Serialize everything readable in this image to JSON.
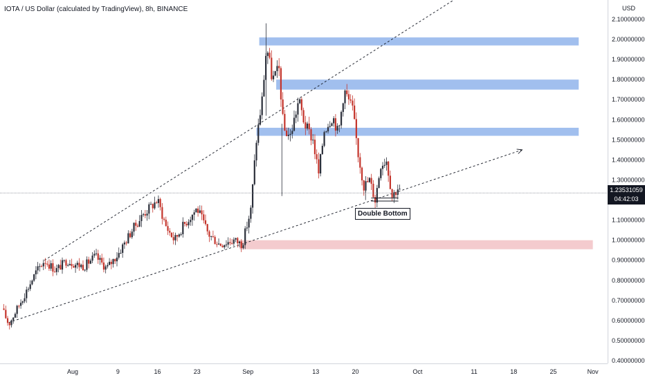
{
  "header": {
    "title": "IOTA / US Dollar (calculated by TradingView), 8h, BINANCE",
    "currency": "USD"
  },
  "price_tag": {
    "value": "1.23531059",
    "countdown": "04:42:03"
  },
  "annotation": {
    "label": "Double Bottom"
  },
  "colors": {
    "up": "#2b2f3a",
    "down": "#c4342b",
    "zone_blue": "#90b4eb",
    "zone_red": "#f0b9be",
    "trendline": "#131722",
    "price_line": "#787b86",
    "axis_text": "#131722"
  },
  "chart_data": {
    "type": "candlestick",
    "title": "IOTA / US Dollar (calculated by TradingView), 8h, BINANCE",
    "y_unit": "USD",
    "ylim": [
      0.4,
      2.1
    ],
    "y_ticks": [
      "2.10000000",
      "2.00000000",
      "1.90000000",
      "1.80000000",
      "1.70000000",
      "1.60000000",
      "1.50000000",
      "1.40000000",
      "1.30000000",
      "1.10000000",
      "1.00000000",
      "0.90000000",
      "0.80000000",
      "0.70000000",
      "0.60000000",
      "0.50000000",
      "0.40000000"
    ],
    "x_ticks": [
      {
        "label": "Aug",
        "day": 1
      },
      {
        "label": "9",
        "day": 9
      },
      {
        "label": "16",
        "day": 16
      },
      {
        "label": "23",
        "day": 23
      },
      {
        "label": "Sep",
        "day": 32
      },
      {
        "label": "13",
        "day": 44
      },
      {
        "label": "20",
        "day": 51
      },
      {
        "label": "Oct",
        "day": 62
      },
      {
        "label": "11",
        "day": 72
      },
      {
        "label": "18",
        "day": 79
      },
      {
        "label": "25",
        "day": 86
      },
      {
        "label": "Nov",
        "day": 93
      }
    ],
    "price_line": 1.2353,
    "anchors": [
      {
        "day": -11.5,
        "price": 0.66
      },
      {
        "day": -10.3,
        "price": 0.58
      },
      {
        "day": -7.5,
        "price": 0.73
      },
      {
        "day": -5.5,
        "price": 0.84
      },
      {
        "day": -4.0,
        "price": 0.9
      },
      {
        "day": -2.0,
        "price": 0.85
      },
      {
        "day": 0.0,
        "price": 0.9
      },
      {
        "day": 1.5,
        "price": 0.88
      },
      {
        "day": 3.0,
        "price": 0.87
      },
      {
        "day": 5.0,
        "price": 0.92
      },
      {
        "day": 7.0,
        "price": 0.86
      },
      {
        "day": 9.0,
        "price": 0.93
      },
      {
        "day": 11.5,
        "price": 1.05
      },
      {
        "day": 13.5,
        "price": 1.13
      },
      {
        "day": 16.0,
        "price": 1.2
      },
      {
        "day": 17.5,
        "price": 1.07
      },
      {
        "day": 19.0,
        "price": 1.0
      },
      {
        "day": 20.5,
        "price": 1.07
      },
      {
        "day": 23.0,
        "price": 1.16
      },
      {
        "day": 25.0,
        "price": 1.03
      },
      {
        "day": 27.0,
        "price": 0.98
      },
      {
        "day": 29.5,
        "price": 1.0
      },
      {
        "day": 31.0,
        "price": 0.98
      },
      {
        "day": 32.5,
        "price": 1.15
      },
      {
        "day": 33.5,
        "price": 1.5
      },
      {
        "day": 34.5,
        "price": 1.7
      },
      {
        "day": 35.3,
        "price": 1.97
      },
      {
        "day": 36.3,
        "price": 1.8
      },
      {
        "day": 37.5,
        "price": 1.85
      },
      {
        "day": 38.3,
        "price": 1.55
      },
      {
        "day": 39.5,
        "price": 1.52
      },
      {
        "day": 41.0,
        "price": 1.7
      },
      {
        "day": 42.0,
        "price": 1.58
      },
      {
        "day": 43.5,
        "price": 1.5
      },
      {
        "day": 44.5,
        "price": 1.33
      },
      {
        "day": 45.5,
        "price": 1.55
      },
      {
        "day": 47.0,
        "price": 1.62
      },
      {
        "day": 48.0,
        "price": 1.53
      },
      {
        "day": 49.0,
        "price": 1.75
      },
      {
        "day": 50.5,
        "price": 1.65
      },
      {
        "day": 51.5,
        "price": 1.43
      },
      {
        "day": 52.5,
        "price": 1.27
      },
      {
        "day": 53.5,
        "price": 1.3
      },
      {
        "day": 54.5,
        "price": 1.2
      },
      {
        "day": 55.5,
        "price": 1.38
      },
      {
        "day": 56.5,
        "price": 1.4
      },
      {
        "day": 57.5,
        "price": 1.22
      },
      {
        "day": 58.5,
        "price": 1.26
      },
      {
        "day": 59.0,
        "price": 1.235
      }
    ],
    "zones": [
      {
        "kind": "resistance",
        "from_day": 34.0,
        "to_day": 90.5,
        "low": 1.97,
        "high": 2.01
      },
      {
        "kind": "resistance",
        "from_day": 37.0,
        "to_day": 90.5,
        "low": 1.75,
        "high": 1.8
      },
      {
        "kind": "resistance",
        "from_day": 33.5,
        "to_day": 90.5,
        "low": 1.52,
        "high": 1.56
      },
      {
        "kind": "support",
        "from_day": 30.5,
        "to_day": 93.0,
        "low": 0.955,
        "high": 1.0
      }
    ],
    "trendlines": [
      {
        "day1": -10.3,
        "price1": 0.59,
        "day2": 80.5,
        "price2": 1.45,
        "arrow": true
      },
      {
        "day1": -4.0,
        "price1": 0.9,
        "day2": 82.0,
        "price2": 2.44,
        "arrow": false
      }
    ]
  }
}
